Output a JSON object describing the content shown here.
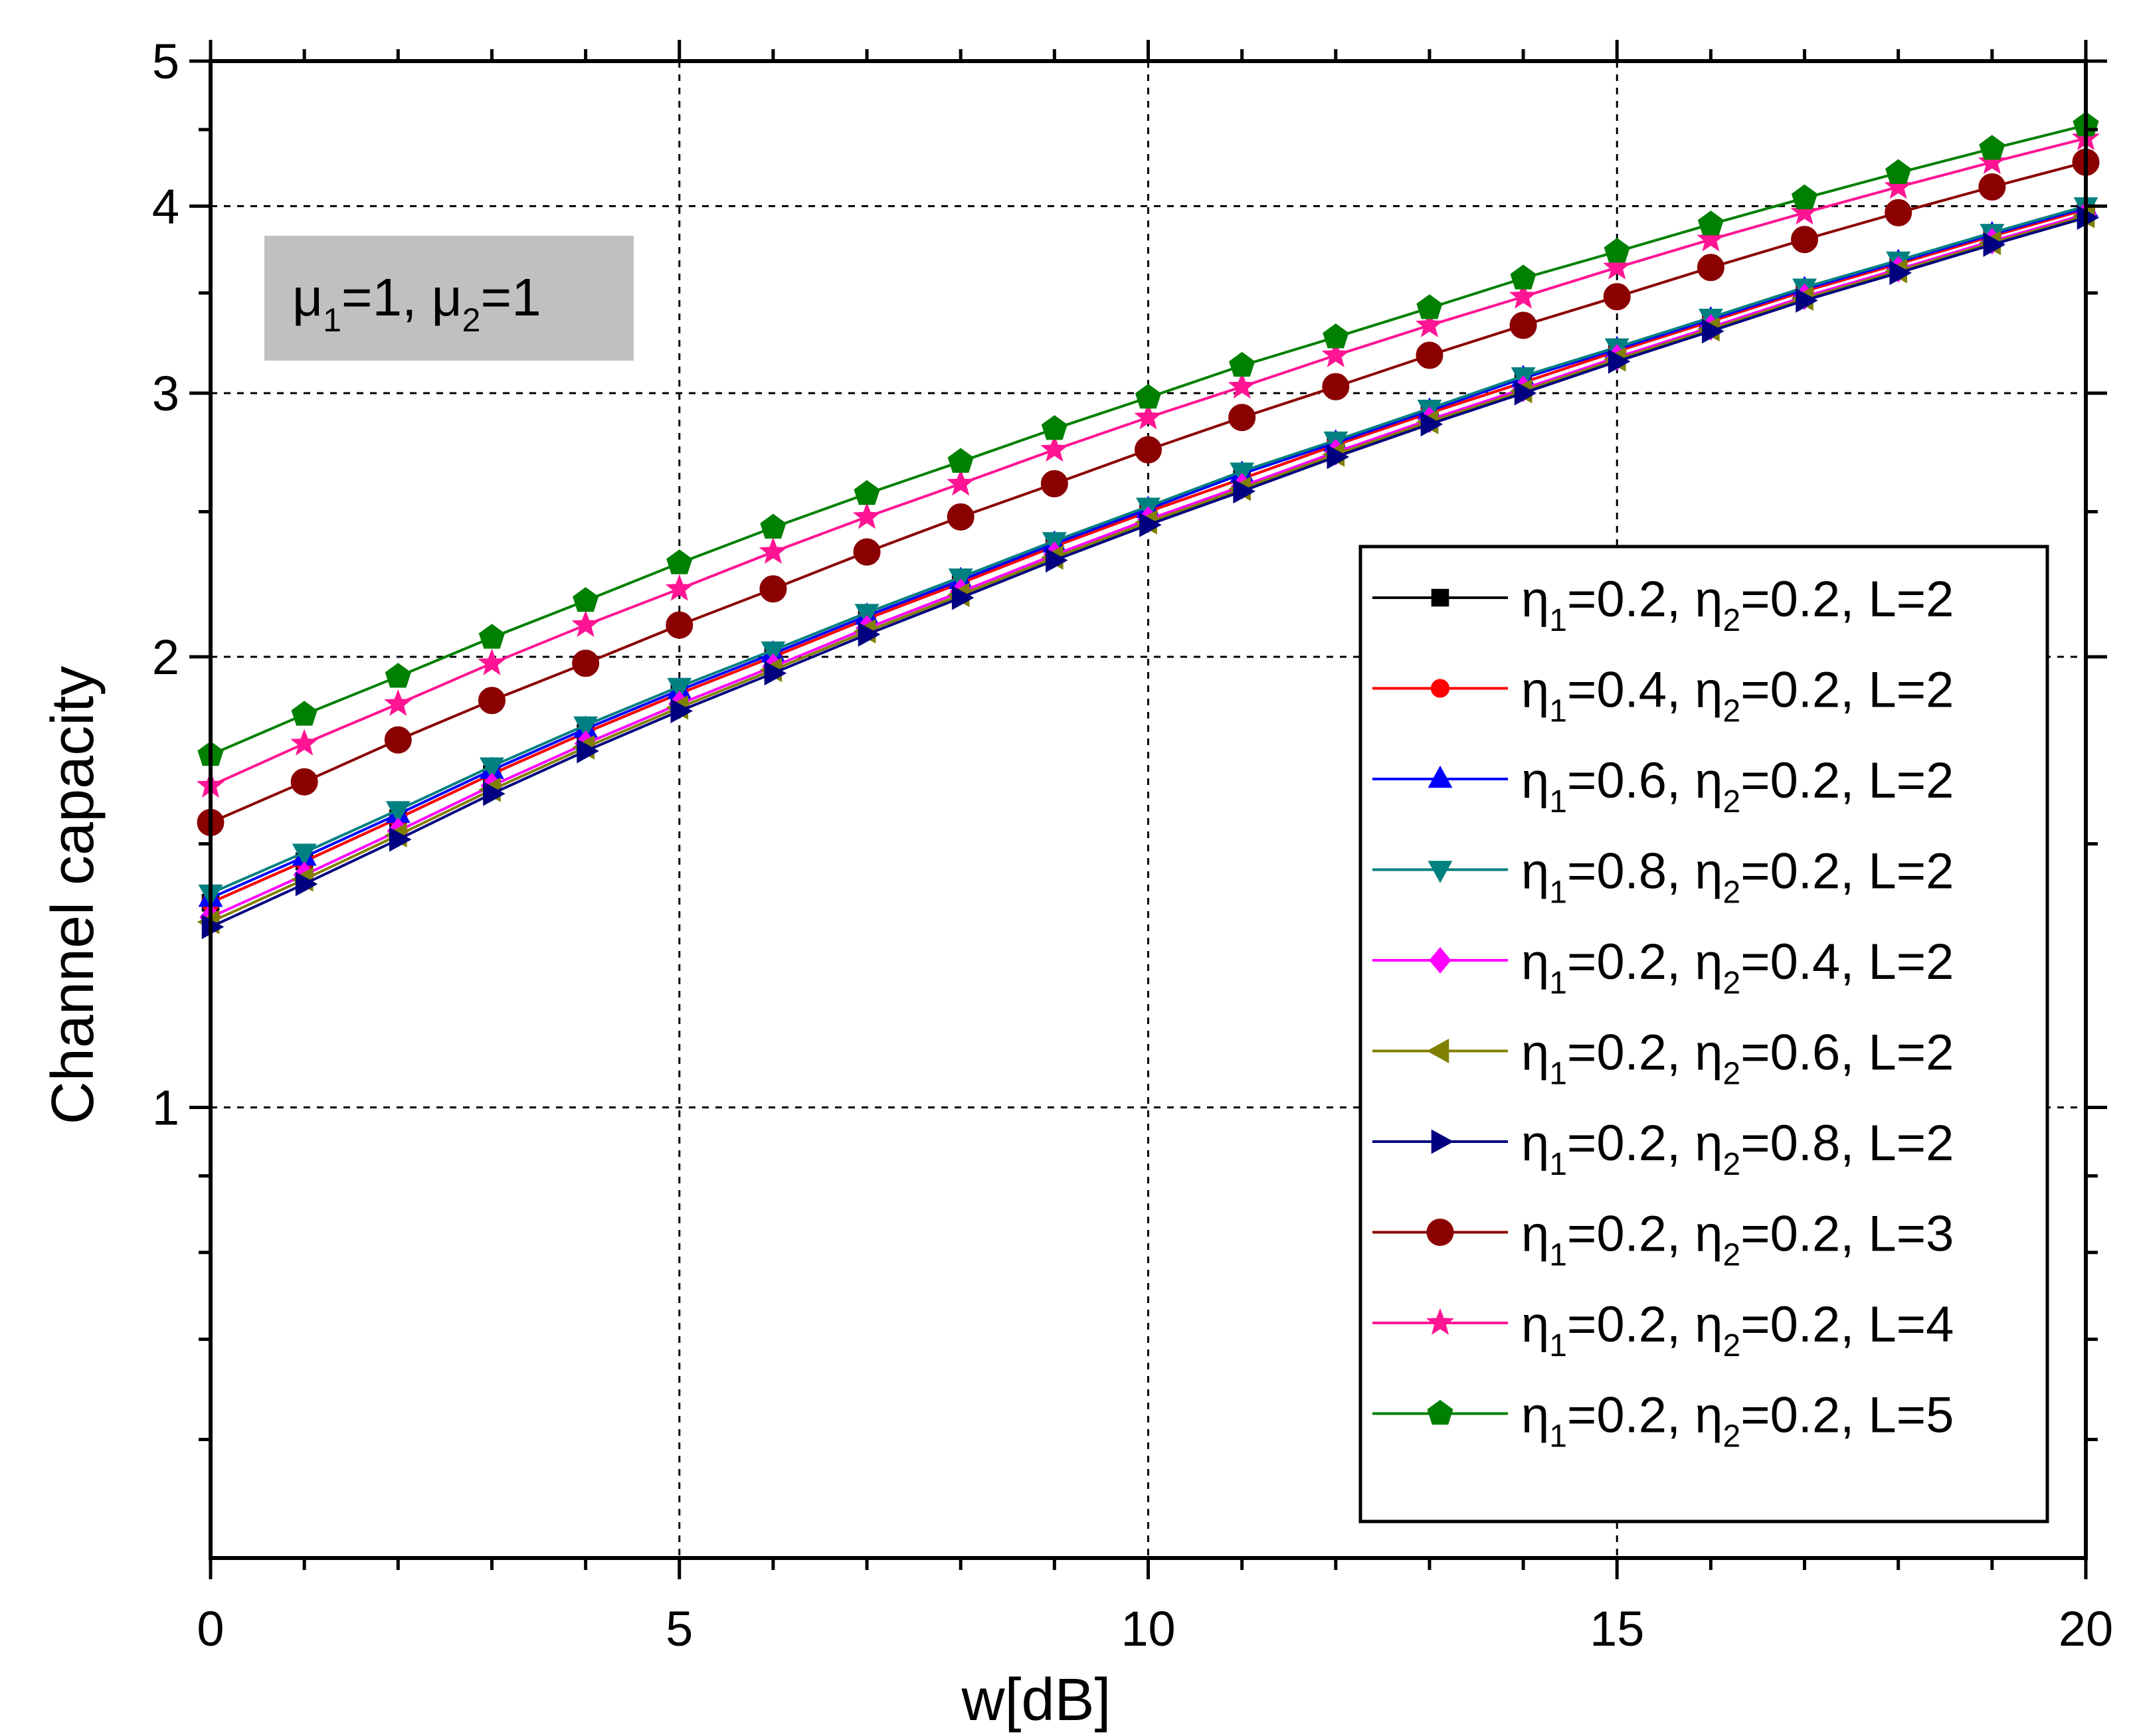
{
  "chart_data": {
    "type": "line",
    "title": "",
    "xlabel": "w[dB]",
    "ylabel": "Channel capacity",
    "xlim": [
      0,
      20
    ],
    "ylim": [
      0.5,
      5
    ],
    "yscale": "log",
    "grid": true,
    "legend_position": "lower-right",
    "x_ticks": [
      0,
      5,
      10,
      15,
      20
    ],
    "x_tick_labels": [
      "0",
      "5",
      "10",
      "15",
      "20"
    ],
    "y_ticks": [
      1,
      2,
      3,
      4,
      5
    ],
    "y_tick_labels": [
      "1",
      "2",
      "3",
      "4",
      "5"
    ],
    "annotation": {
      "mu1_symbol": "μ",
      "mu1_sub": "1",
      "mu1_value": "=1, ",
      "mu2_symbol": "μ",
      "mu2_sub": "2",
      "mu2_value": "=1"
    },
    "x": [
      0,
      1,
      2,
      3,
      4,
      5,
      6,
      7,
      8,
      9,
      10,
      11,
      12,
      13,
      14,
      15,
      16,
      17,
      18,
      19,
      20
    ],
    "series": [
      {
        "name": "η1=0.2, η2=0.2, L=2",
        "eta1": "0.2",
        "eta2": "0.2",
        "L": "2",
        "color": "#000000",
        "marker": "square",
        "values": [
          1.37,
          1.46,
          1.56,
          1.67,
          1.78,
          1.89,
          2.0,
          2.12,
          2.24,
          2.37,
          2.5,
          2.63,
          2.77,
          2.91,
          3.05,
          3.2,
          3.35,
          3.51,
          3.66,
          3.82,
          3.98
        ]
      },
      {
        "name": "η1=0.4, η2=0.2, L=2",
        "eta1": "0.4",
        "eta2": "0.2",
        "L": "2",
        "color": "#ff0000",
        "marker": "circle-small",
        "values": [
          1.37,
          1.46,
          1.56,
          1.67,
          1.78,
          1.89,
          2.0,
          2.12,
          2.24,
          2.37,
          2.5,
          2.63,
          2.77,
          2.91,
          3.05,
          3.2,
          3.35,
          3.51,
          3.66,
          3.82,
          3.98
        ]
      },
      {
        "name": "η1=0.6, η2=0.2, L=2",
        "eta1": "0.6",
        "eta2": "0.2",
        "L": "2",
        "color": "#0000ff",
        "marker": "triangle-up",
        "values": [
          1.38,
          1.47,
          1.57,
          1.68,
          1.79,
          1.9,
          2.01,
          2.13,
          2.25,
          2.38,
          2.51,
          2.65,
          2.78,
          2.92,
          3.07,
          3.21,
          3.36,
          3.52,
          3.67,
          3.83,
          3.99
        ]
      },
      {
        "name": "η1=0.8, η2=0.2, L=2",
        "eta1": "0.8",
        "eta2": "0.2",
        "L": "2",
        "color": "#008080",
        "marker": "triangle-down",
        "values": [
          1.39,
          1.48,
          1.58,
          1.69,
          1.8,
          1.91,
          2.02,
          2.14,
          2.26,
          2.39,
          2.52,
          2.66,
          2.79,
          2.93,
          3.08,
          3.22,
          3.37,
          3.53,
          3.68,
          3.84,
          4.0
        ]
      },
      {
        "name": "η1=0.2, η2=0.4, L=2",
        "eta1": "0.2",
        "eta2": "0.4",
        "L": "2",
        "color": "#ff00ff",
        "marker": "diamond",
        "values": [
          1.34,
          1.43,
          1.53,
          1.64,
          1.75,
          1.86,
          1.97,
          2.09,
          2.21,
          2.34,
          2.47,
          2.6,
          2.74,
          2.88,
          3.02,
          3.17,
          3.32,
          3.48,
          3.63,
          3.79,
          3.95
        ]
      },
      {
        "name": "η1=0.2, η2=0.6, L=2",
        "eta1": "0.2",
        "eta2": "0.6",
        "L": "2",
        "color": "#808000",
        "marker": "triangle-left",
        "values": [
          1.33,
          1.42,
          1.52,
          1.63,
          1.74,
          1.85,
          1.96,
          2.08,
          2.2,
          2.33,
          2.46,
          2.59,
          2.73,
          2.87,
          3.01,
          3.16,
          3.31,
          3.47,
          3.62,
          3.78,
          3.94
        ]
      },
      {
        "name": "η1=0.2, η2=0.8, L=2",
        "eta1": "0.2",
        "eta2": "0.8",
        "L": "2",
        "color": "#000080",
        "marker": "triangle-right",
        "values": [
          1.32,
          1.41,
          1.51,
          1.62,
          1.73,
          1.84,
          1.95,
          2.07,
          2.19,
          2.32,
          2.45,
          2.58,
          2.72,
          2.86,
          3.0,
          3.15,
          3.3,
          3.46,
          3.61,
          3.77,
          3.93
        ]
      },
      {
        "name": "η1=0.2, η2=0.2, L=3",
        "eta1": "0.2",
        "eta2": "0.2",
        "L": "3",
        "color": "#8b0000",
        "marker": "circle",
        "values": [
          1.55,
          1.65,
          1.76,
          1.87,
          1.98,
          2.1,
          2.22,
          2.35,
          2.48,
          2.61,
          2.75,
          2.89,
          3.03,
          3.18,
          3.33,
          3.48,
          3.64,
          3.8,
          3.96,
          4.12,
          4.28
        ]
      },
      {
        "name": "η1=0.2, η2=0.2, L=4",
        "eta1": "0.2",
        "eta2": "0.2",
        "L": "4",
        "color": "#ff1493",
        "marker": "star",
        "values": [
          1.64,
          1.75,
          1.86,
          1.98,
          2.1,
          2.22,
          2.35,
          2.48,
          2.61,
          2.75,
          2.89,
          3.03,
          3.18,
          3.33,
          3.48,
          3.64,
          3.8,
          3.96,
          4.12,
          4.28,
          4.44
        ]
      },
      {
        "name": "η1=0.2, η2=0.2, L=5",
        "eta1": "0.2",
        "eta2": "0.2",
        "L": "5",
        "color": "#008000",
        "marker": "pentagon",
        "values": [
          1.72,
          1.83,
          1.94,
          2.06,
          2.18,
          2.31,
          2.44,
          2.57,
          2.7,
          2.84,
          2.98,
          3.13,
          3.27,
          3.42,
          3.58,
          3.73,
          3.89,
          4.05,
          4.21,
          4.37,
          4.53
        ]
      }
    ]
  }
}
